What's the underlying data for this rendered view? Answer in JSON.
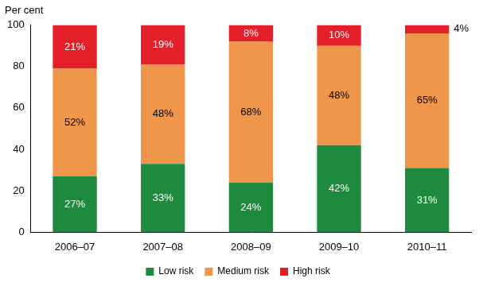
{
  "chart_data": {
    "type": "bar",
    "stacked": true,
    "y_label": "Per cent",
    "categories": [
      "2006–07",
      "2007–08",
      "2008–09",
      "2009–10",
      "2010–11"
    ],
    "series": [
      {
        "name": "Low risk",
        "color": "#1e8a3e",
        "values": [
          27,
          33,
          24,
          42,
          31
        ],
        "value_labels": [
          "27%",
          "33%",
          "24%",
          "42%",
          "31%"
        ]
      },
      {
        "name": "Medium risk",
        "color": "#f0964b",
        "values": [
          52,
          48,
          68,
          48,
          65
        ],
        "value_labels": [
          "52%",
          "48%",
          "68%",
          "48%",
          "65%"
        ]
      },
      {
        "name": "High risk",
        "color": "#e3202a",
        "values": [
          21,
          19,
          8,
          10,
          4
        ],
        "value_labels": [
          "21%",
          "19%",
          "8%",
          "10%",
          "4%"
        ]
      }
    ],
    "ylim": [
      0,
      100
    ],
    "yticks": [
      0,
      20,
      40,
      60,
      80,
      100
    ],
    "grid": false,
    "legend": "bottom",
    "data_labels": true
  }
}
